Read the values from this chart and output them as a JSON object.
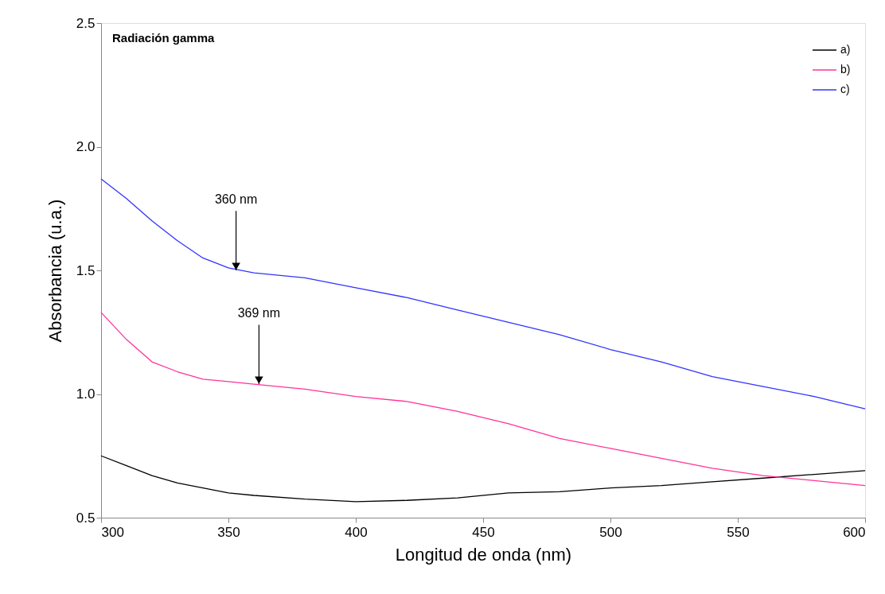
{
  "chart_data": {
    "type": "line",
    "title": "Radiación gamma",
    "xlabel": "Longitud de onda (nm)",
    "ylabel": "Absorbancia (u.a.)",
    "x": [
      300,
      310,
      320,
      330,
      340,
      350,
      360,
      380,
      400,
      420,
      440,
      460,
      480,
      500,
      520,
      540,
      560,
      580,
      600
    ],
    "series": [
      {
        "name": "a)",
        "color": "#000000",
        "values": [
          0.75,
          0.71,
          0.67,
          0.64,
          0.62,
          0.6,
          0.59,
          0.575,
          0.565,
          0.57,
          0.58,
          0.6,
          0.605,
          0.62,
          0.63,
          0.645,
          0.66,
          0.675,
          0.69
        ]
      },
      {
        "name": "b)",
        "color": "#ff3399",
        "values": [
          1.33,
          1.22,
          1.13,
          1.09,
          1.06,
          1.05,
          1.04,
          1.02,
          0.99,
          0.97,
          0.93,
          0.88,
          0.82,
          0.78,
          0.74,
          0.7,
          0.67,
          0.65,
          0.63
        ]
      },
      {
        "name": "c)",
        "color": "#3333ff",
        "values": [
          1.87,
          1.79,
          1.7,
          1.62,
          1.55,
          1.51,
          1.49,
          1.47,
          1.43,
          1.39,
          1.34,
          1.29,
          1.24,
          1.18,
          1.13,
          1.07,
          1.03,
          0.99,
          0.94
        ]
      }
    ],
    "xlim": [
      300,
      600
    ],
    "ylim": [
      0.5,
      2.5
    ],
    "xticks": [
      300,
      350,
      400,
      450,
      500,
      550,
      600
    ],
    "yticks": [
      0.5,
      {
        "value": 1,
        "label": "1.0"
      },
      1.5,
      {
        "value": 2,
        "label": "2.0"
      },
      2.5
    ],
    "annotations": [
      {
        "text": "360 nm",
        "x": 353,
        "y": 1.5
      },
      {
        "text": "369 nm",
        "x": 362,
        "y": 1.04
      }
    ],
    "legend": "top right",
    "grid": false,
    "marker": "none",
    "line_style": "solid"
  }
}
